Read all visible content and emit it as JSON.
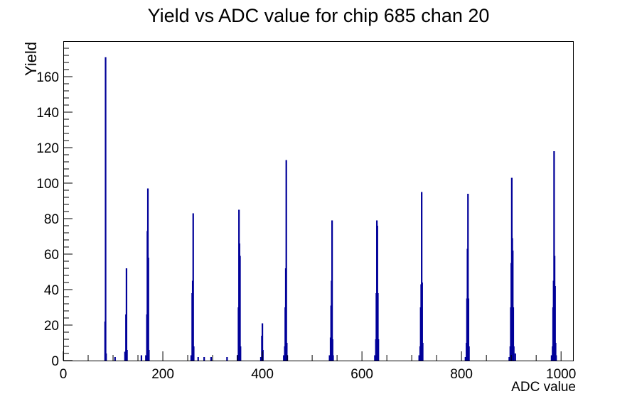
{
  "chart_data": {
    "type": "bar",
    "title": "Yield vs ADC value for chip 685 chan 20",
    "xlabel": "ADC value",
    "ylabel": "Yield",
    "xlim": [
      0,
      1024
    ],
    "ylim": [
      0,
      180
    ],
    "grid": false,
    "legend": false,
    "x_major_ticks": [
      0,
      200,
      400,
      600,
      800,
      1000
    ],
    "x_tick_labels": [
      "0",
      "200",
      "400",
      "600",
      "800",
      "1000"
    ],
    "x_minor_step": 50,
    "y_major_ticks": [
      0,
      20,
      40,
      60,
      80,
      100,
      120,
      140,
      160
    ],
    "y_tick_labels": [
      "0",
      "20",
      "40",
      "60",
      "80",
      "100",
      "120",
      "140",
      "160"
    ],
    "y_minor_step": 4,
    "line_color": "#000099",
    "axis_color": "#000000",
    "background_color": "#ffffff",
    "bins": [
      [
        84,
        22
      ],
      [
        85,
        171
      ],
      [
        86,
        4
      ],
      [
        104,
        2
      ],
      [
        124,
        5
      ],
      [
        126,
        26
      ],
      [
        127,
        52
      ],
      [
        128,
        6
      ],
      [
        157,
        3
      ],
      [
        166,
        3
      ],
      [
        168,
        26
      ],
      [
        169,
        73
      ],
      [
        170,
        97
      ],
      [
        171,
        58
      ],
      [
        172,
        6
      ],
      [
        257,
        3
      ],
      [
        259,
        38
      ],
      [
        260,
        45
      ],
      [
        261,
        83
      ],
      [
        262,
        8
      ],
      [
        271,
        2
      ],
      [
        283,
        2
      ],
      [
        297,
        2
      ],
      [
        329,
        2
      ],
      [
        350,
        3
      ],
      [
        352,
        30
      ],
      [
        353,
        85
      ],
      [
        354,
        66
      ],
      [
        355,
        59
      ],
      [
        356,
        8
      ],
      [
        397,
        2
      ],
      [
        399,
        14
      ],
      [
        400,
        21
      ],
      [
        401,
        6
      ],
      [
        443,
        3
      ],
      [
        445,
        8
      ],
      [
        446,
        30
      ],
      [
        447,
        52
      ],
      [
        448,
        113
      ],
      [
        449,
        10
      ],
      [
        450,
        3
      ],
      [
        535,
        3
      ],
      [
        537,
        13
      ],
      [
        538,
        31
      ],
      [
        539,
        45
      ],
      [
        540,
        79
      ],
      [
        541,
        12
      ],
      [
        542,
        3
      ],
      [
        626,
        3
      ],
      [
        628,
        12
      ],
      [
        629,
        38
      ],
      [
        630,
        79
      ],
      [
        631,
        76
      ],
      [
        632,
        38
      ],
      [
        633,
        12
      ],
      [
        715,
        3
      ],
      [
        717,
        8
      ],
      [
        718,
        30
      ],
      [
        719,
        43
      ],
      [
        720,
        95
      ],
      [
        721,
        44
      ],
      [
        722,
        10
      ],
      [
        808,
        2
      ],
      [
        810,
        10
      ],
      [
        811,
        35
      ],
      [
        812,
        63
      ],
      [
        813,
        94
      ],
      [
        814,
        35
      ],
      [
        815,
        8
      ],
      [
        896,
        2
      ],
      [
        898,
        8
      ],
      [
        899,
        30
      ],
      [
        900,
        55
      ],
      [
        901,
        103
      ],
      [
        902,
        69
      ],
      [
        903,
        62
      ],
      [
        904,
        30
      ],
      [
        905,
        8
      ],
      [
        908,
        4
      ],
      [
        981,
        3
      ],
      [
        983,
        8
      ],
      [
        984,
        30
      ],
      [
        985,
        45
      ],
      [
        986,
        118
      ],
      [
        987,
        59
      ],
      [
        988,
        42
      ],
      [
        989,
        10
      ],
      [
        990,
        3
      ]
    ]
  }
}
